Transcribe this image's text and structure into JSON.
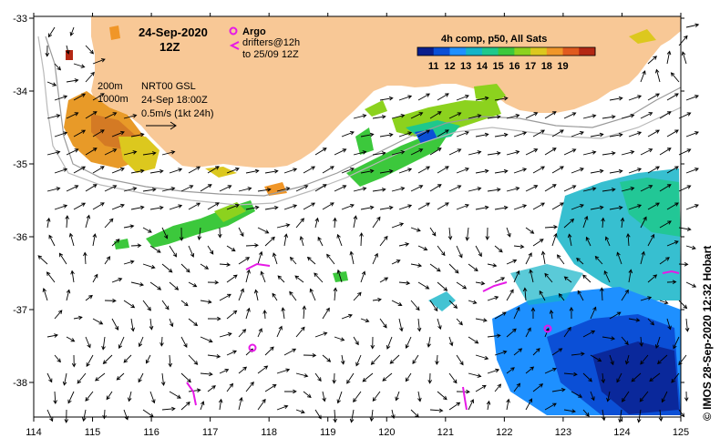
{
  "header": {
    "date": "24-Sep-2020",
    "time": "12Z"
  },
  "legend": {
    "argo_label": "Argo",
    "drifters_line1": "drifters@12h",
    "drifters_line2": "to 25/09 12Z",
    "colorbar_title": "4h comp, p50, All Sats",
    "colorbar_ticks": [
      "11",
      "12",
      "13",
      "14",
      "15",
      "16",
      "17",
      "18",
      "19"
    ],
    "colors": [
      "#0a1e8c",
      "#0b4fd6",
      "#1e90ff",
      "#14b4c8",
      "#1ec88c",
      "#3cc83c",
      "#8cd21e",
      "#dcc81e",
      "#f09628",
      "#e05a1e",
      "#b42814"
    ]
  },
  "annotations": {
    "contour_200": "200m",
    "contour_1000": "1000m",
    "product": "NRT00 GSL",
    "product_time": "24-Sep 18:00Z",
    "scale": "0.5m/s (1kt 24h)"
  },
  "axes": {
    "x_ticks": [
      "114",
      "115",
      "116",
      "117",
      "118",
      "119",
      "120",
      "121",
      "122",
      "123",
      "124",
      "125"
    ],
    "y_ticks": [
      "-33",
      "-34",
      "-35",
      "-36",
      "-37",
      "-38"
    ]
  },
  "credit": "© IMOS 28-Sep-2020 12:32 Hobart",
  "colors": {
    "land": "#f8c896",
    "argo": "#e619e6",
    "drifter": "#e619e6"
  }
}
